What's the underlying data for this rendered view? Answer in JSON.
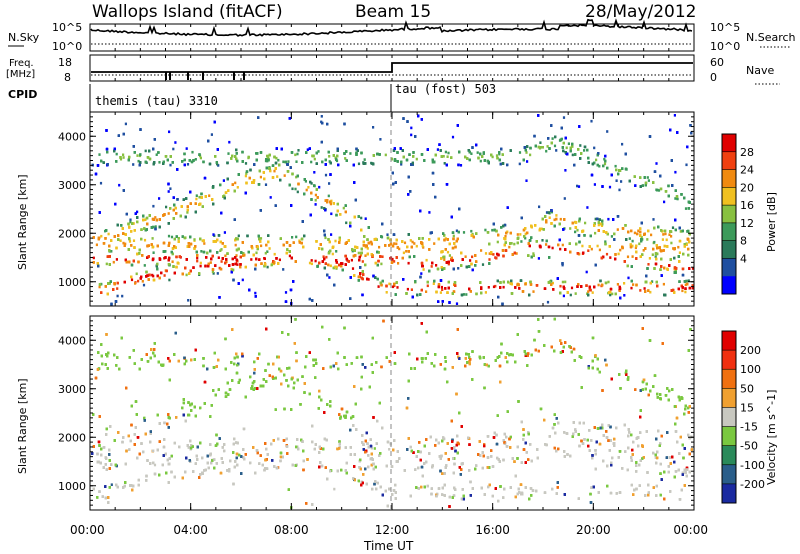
{
  "header": {
    "station": "Wallops Island (fitACF)",
    "beam": "Beam 15",
    "date": "28/May/2012"
  },
  "noise_panel": {
    "left_label": "N.Sky",
    "right_label": "N.Search",
    "left_ticks": [
      "10^5",
      "10^0"
    ],
    "right_ticks": [
      "10^5",
      "10^0"
    ]
  },
  "freq_panel": {
    "left_label_top": "Freq.",
    "left_label_bottom": "[MHz]",
    "left_ticks": [
      "18",
      "8"
    ],
    "right_label": "Nave",
    "right_ticks": [
      "60",
      "0"
    ]
  },
  "cpid": {
    "label": "CPID",
    "segments": [
      {
        "name": "themis (tau) 3310"
      },
      {
        "name": "tau (fost) 503"
      }
    ]
  },
  "chart_data": [
    {
      "type": "heatmap",
      "title": "",
      "xlabel": "Time UT",
      "ylabel": "Slant Range [km]",
      "colorbar_label": "Power [dB]",
      "colorbar_ticks": [
        "28",
        "24",
        "20",
        "16",
        "12",
        "8",
        "4"
      ],
      "colorbar_colors": [
        "#0000ff",
        "#1f4fa0",
        "#2a7a5a",
        "#3c9a5a",
        "#88c040",
        "#f0c020",
        "#f08a10",
        "#f04010",
        "#e00000"
      ],
      "x_range_hours": [
        0,
        24
      ],
      "y_range_km": [
        500,
        4500
      ],
      "y_ticks": [
        "4000",
        "3000",
        "2000",
        "1000"
      ],
      "bands": [
        {
          "level": "strong",
          "x": [
            0.5,
            2,
            4,
            6,
            8,
            10,
            11.5
          ],
          "y": [
            850,
            1100,
            1300,
            1400,
            1550,
            1400,
            900
          ]
        },
        {
          "level": "strong",
          "x": [
            12,
            13,
            14.5,
            16,
            17.5,
            19,
            21,
            22.5,
            24
          ],
          "y": [
            1500,
            1350,
            1450,
            1550,
            1750,
            1700,
            1500,
            1400,
            1300
          ]
        },
        {
          "level": "medium",
          "x": [
            0.5,
            2,
            4,
            6,
            7.5,
            9,
            10.5,
            11.5
          ],
          "y": [
            1900,
            2200,
            2600,
            3100,
            3300,
            2800,
            2300,
            1700
          ]
        },
        {
          "level": "medium",
          "x": [
            12,
            14,
            16,
            17.5,
            18.5,
            19.5,
            21,
            22.5,
            24
          ],
          "y": [
            1800,
            1850,
            1950,
            2100,
            2350,
            2150,
            2100,
            2000,
            1900
          ]
        },
        {
          "level": "weak",
          "x": [
            17,
            18.5,
            19.5,
            21,
            23,
            24
          ],
          "y": [
            3600,
            3900,
            3700,
            3300,
            2900,
            2500
          ]
        }
      ]
    },
    {
      "type": "heatmap",
      "title": "",
      "xlabel": "Time UT",
      "ylabel": "Slant Range [km]",
      "colorbar_label": "Velocity [m s^-1]",
      "colorbar_ticks": [
        "200",
        "100",
        "50",
        "15",
        "-15",
        "-50",
        "-100",
        "-200"
      ],
      "colorbar_colors": [
        "#1a2aa0",
        "#2a5e8a",
        "#2a8a5a",
        "#7ac840",
        "#c8c8c0",
        "#f0a030",
        "#f07010",
        "#f03010",
        "#e00000"
      ],
      "x_range_hours": [
        0,
        24
      ],
      "y_range_km": [
        500,
        4500
      ],
      "y_ticks": [
        "4000",
        "3000",
        "2000",
        "1000"
      ],
      "x_ticks": [
        "00:00",
        "04:00",
        "08:00",
        "12:00",
        "16:00",
        "20:00",
        "00:00"
      ]
    }
  ]
}
